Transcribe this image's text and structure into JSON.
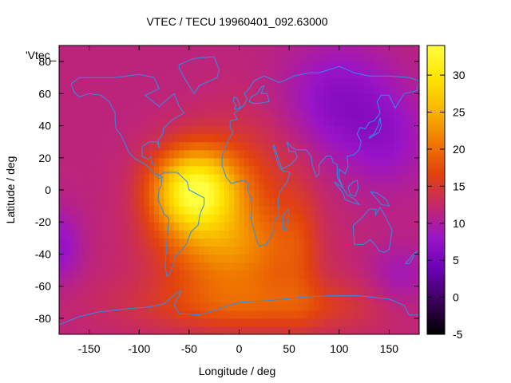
{
  "chart_data": {
    "type": "heatmap",
    "title": "VTEC / TECU 19960401_092.63000",
    "xlabel": "Longitude / deg",
    "ylabel": "Latitude / deg",
    "legend_label": "'Vtec_",
    "xlim": [
      -180,
      180
    ],
    "ylim": [
      -90,
      90
    ],
    "xticks": [
      -150,
      -100,
      -50,
      0,
      50,
      100,
      150
    ],
    "yticks": [
      -80,
      -60,
      -40,
      -20,
      0,
      20,
      40,
      60,
      80
    ],
    "colorbar": {
      "range": [
        -5,
        34
      ],
      "ticks": [
        -5,
        0,
        5,
        10,
        15,
        20,
        25,
        30
      ],
      "palette": [
        "#000000",
        "#3a0058",
        "#6a00b4",
        "#9a14c8",
        "#c4286a",
        "#e2420e",
        "#f07a00",
        "#f8b800",
        "#ffe400",
        "#ffff40"
      ]
    },
    "grid": false,
    "peak": {
      "lon": -45,
      "lat": 0,
      "vtec": 33
    },
    "minimum": {
      "lon": 100,
      "lat": 55,
      "vtec": 8
    },
    "coastline_color": "#2f8ee8",
    "grid_resolution": {
      "dlon": 5,
      "dlat": 5
    }
  }
}
